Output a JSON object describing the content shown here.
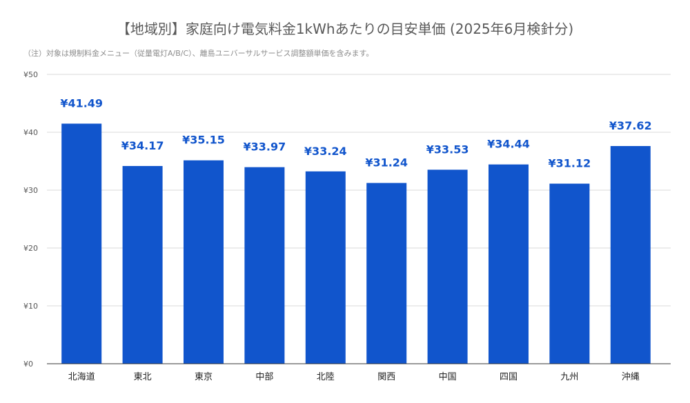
{
  "chart_data": {
    "type": "bar",
    "title": "【地域別】家庭向け電気料金1kWhあたりの目安単価 (2025年6月検針分)",
    "subtitle": "（注）対象は規制料金メニュー（従量電灯A/B/C）、離島ユニバーサルサービス調整額単価を含みます。",
    "categories": [
      "北海道",
      "東北",
      "東京",
      "中部",
      "北陸",
      "関西",
      "中国",
      "四国",
      "九州",
      "沖縄"
    ],
    "values": [
      41.49,
      34.17,
      35.15,
      33.97,
      33.24,
      31.24,
      33.53,
      34.44,
      31.12,
      37.62
    ],
    "data_labels": [
      "¥41.49",
      "¥34.17",
      "¥35.15",
      "¥33.97",
      "¥33.24",
      "¥31.24",
      "¥33.53",
      "¥34.44",
      "¥31.12",
      "¥37.62"
    ],
    "ylim": [
      0,
      50
    ],
    "yticks": [
      0,
      10,
      20,
      30,
      40,
      50
    ],
    "ytick_labels": [
      "¥0",
      "¥10",
      "¥20",
      "¥30",
      "¥40",
      "¥50"
    ],
    "xlabel": "",
    "ylabel": "",
    "grid": true,
    "legend": "none",
    "bar_color": "#1155cc",
    "label_color": "#1155cc",
    "grid_color": "#d9d9d9",
    "axis_color": "#333333"
  }
}
